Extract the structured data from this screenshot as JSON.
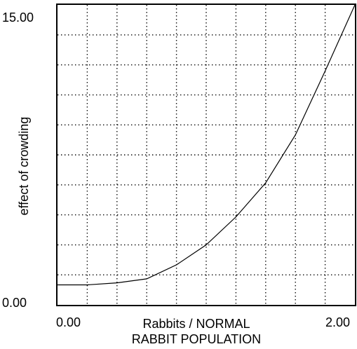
{
  "chart_data": {
    "type": "line",
    "xlabel": "Rabbits / NORMAL RABBIT POPULATION",
    "xlabel_lines": [
      "Rabbits / NORMAL",
      "RABBIT POPULATION"
    ],
    "ylabel": "effect of crowding",
    "xlim": [
      0,
      2
    ],
    "ylim": [
      0,
      15
    ],
    "x_tick_labels": [
      "0.00",
      "2.00"
    ],
    "y_tick_labels": [
      "0.00",
      "15.00"
    ],
    "grid": true,
    "grid_divisions_x": 10,
    "grid_divisions_y": 10,
    "series": [
      {
        "x": [
          0.0,
          0.2,
          0.4,
          0.6,
          0.8,
          1.0,
          1.2,
          1.4,
          1.6,
          1.8,
          2.0
        ],
        "values": [
          1.0,
          1.0,
          1.1,
          1.3,
          2.0,
          3.0,
          4.4,
          6.1,
          8.5,
          11.7,
          15.0
        ]
      }
    ],
    "colors": {
      "line": "#000000",
      "grid": "#000000",
      "frame": "#000000"
    }
  }
}
